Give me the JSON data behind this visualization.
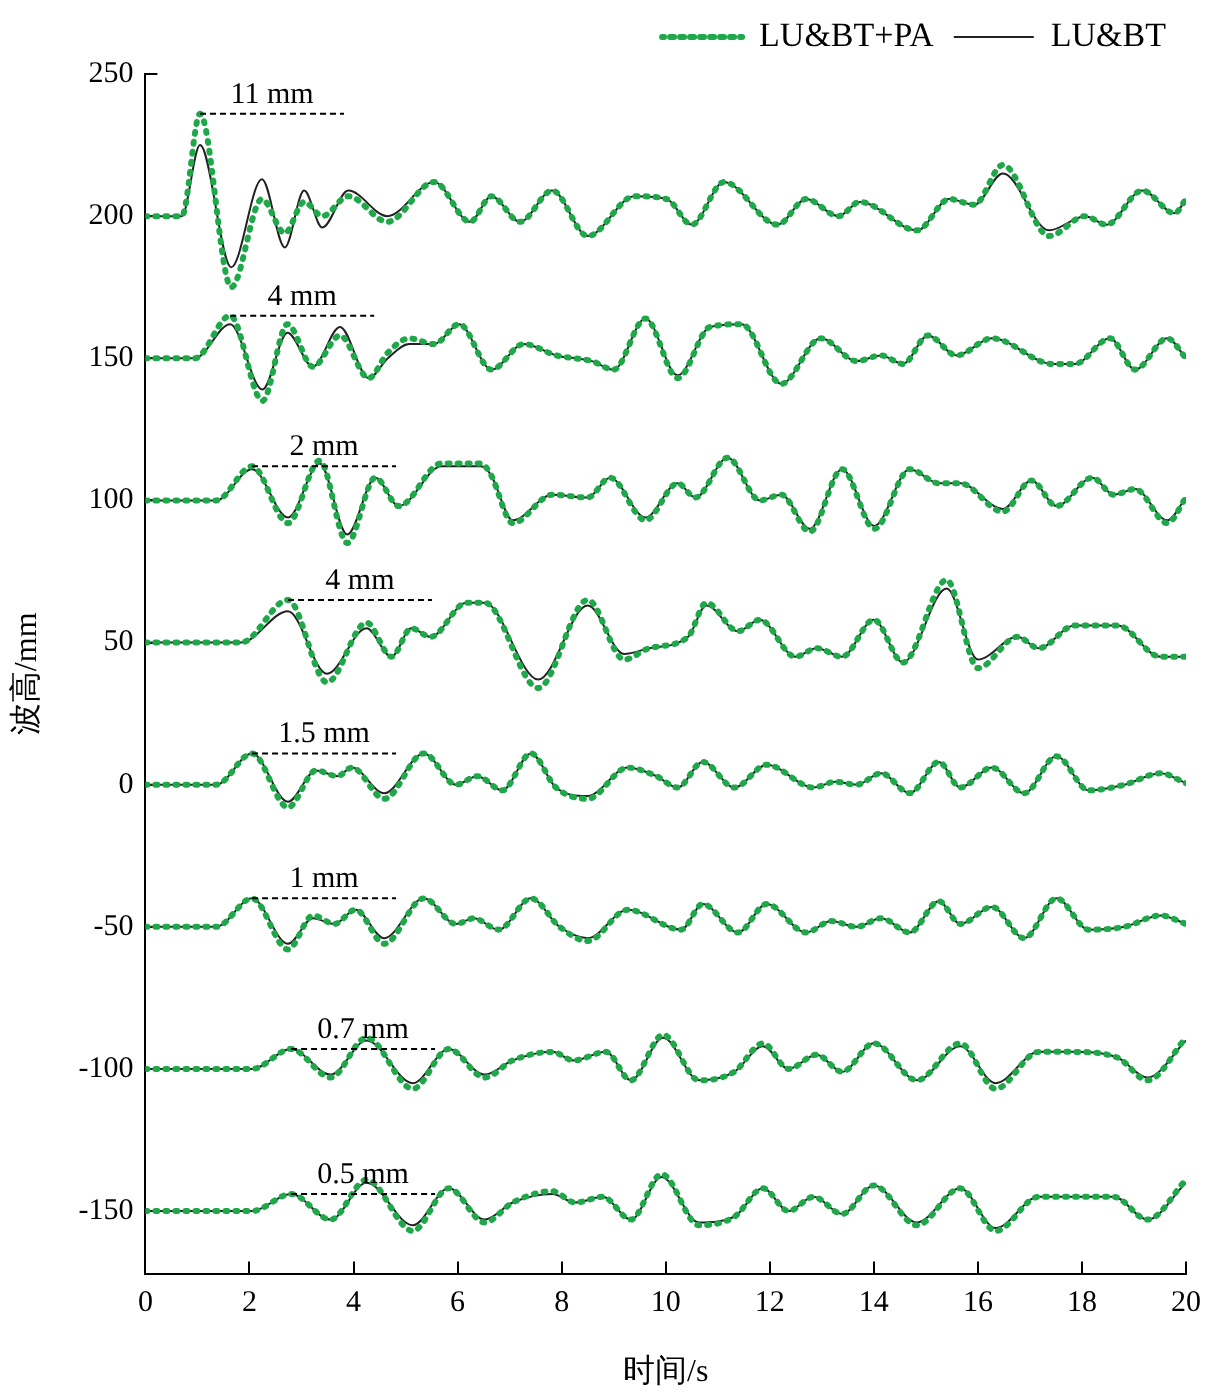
{
  "chart_data": {
    "type": "line",
    "xlabel": "时间/s",
    "ylabel": "波高/mm",
    "xlim": [
      0,
      20
    ],
    "xticks": [
      0,
      2,
      4,
      6,
      8,
      10,
      12,
      14,
      16,
      18,
      20
    ],
    "ylim": [
      -172,
      250
    ],
    "yticks": [
      -150,
      -100,
      -50,
      0,
      50,
      100,
      150,
      200,
      250
    ],
    "grid": false,
    "legend": "top right",
    "marker": "none",
    "series": [
      {
        "name": "LU&BT+PA",
        "color": "#1fa84a",
        "line_style": "dotted",
        "x": [
          0,
          0.7,
          1.05,
          1.65,
          2.24,
          2.68,
          3.05,
          3.4,
          3.9,
          4.65,
          5.55,
          6.24,
          6.65,
          7.2,
          7.82,
          8.5,
          9.4,
          10.02,
          10.5,
          11.12,
          12.15,
          12.7,
          13.32,
          13.73,
          14.83,
          15.45,
          15.93,
          16.48,
          17.37,
          18.06,
          18.47,
          19.16,
          19.78,
          20
        ],
        "values": [
          200,
          200,
          236,
          175,
          206,
          194,
          205,
          200,
          207,
          198,
          212,
          198,
          207,
          198,
          209,
          193,
          207,
          206,
          197,
          212,
          197,
          206,
          200,
          205,
          195,
          206,
          204,
          218,
          193,
          200,
          197,
          209,
          201,
          206
        ]
      },
      {
        "name": "LU&BT",
        "color": "#222222",
        "line_style": "solid",
        "x": [
          0,
          0.7,
          1.05,
          1.65,
          2.24,
          2.68,
          3.05,
          3.4,
          3.9,
          4.65,
          5.55,
          6.24,
          6.65,
          7.2,
          7.82,
          8.5,
          9.4,
          10.02,
          10.5,
          11.12,
          12.15,
          12.7,
          13.32,
          13.73,
          14.83,
          15.45,
          15.93,
          16.48,
          17.37,
          18.06,
          18.47,
          19.16,
          19.78,
          20
        ],
        "values": [
          200,
          200,
          225,
          182,
          213,
          189,
          209,
          196,
          209,
          200,
          212,
          198,
          207,
          198,
          209,
          193,
          207,
          206,
          197,
          212,
          197,
          206,
          200,
          205,
          195,
          206,
          204,
          215,
          195,
          200,
          197,
          209,
          201,
          206
        ]
      },
      {
        "color": "#1fa84a",
        "line_style": "dotted",
        "x": [
          0,
          0.95,
          1.63,
          2.25,
          2.73,
          3.22,
          3.74,
          4.29,
          4.66,
          5.07,
          5.55,
          6.03,
          6.65,
          7.27,
          7.9,
          8.58,
          9.0,
          9.61,
          10.23,
          10.85,
          11.46,
          12.22,
          12.98,
          13.67,
          14.14,
          14.56,
          15.04,
          15.59,
          16.27,
          17.44,
          17.86,
          18.54,
          19.02,
          19.64,
          20
        ],
        "values": [
          150,
          150,
          165,
          135,
          162,
          147,
          158,
          143,
          152,
          157,
          155,
          162,
          146,
          155,
          151,
          149,
          146,
          164,
          143,
          161,
          162,
          141,
          157,
          149,
          151,
          148,
          158,
          151,
          157,
          148,
          148,
          157,
          146,
          157,
          150
        ]
      },
      {
        "color": "#222222",
        "line_style": "solid",
        "x": [
          0,
          0.95,
          1.63,
          2.25,
          2.73,
          3.22,
          3.74,
          4.29,
          4.66,
          5.07,
          5.55,
          6.03,
          6.65,
          7.27,
          7.9,
          8.58,
          9.0,
          9.61,
          10.23,
          10.85,
          11.46,
          12.22,
          12.98,
          13.67,
          14.14,
          14.56,
          15.04,
          15.59,
          16.27,
          17.44,
          17.86,
          18.54,
          19.02,
          19.64,
          20
        ],
        "values": [
          150,
          150,
          162,
          139,
          159,
          147,
          161,
          143,
          150,
          155,
          155,
          162,
          146,
          155,
          151,
          149,
          146,
          164,
          144,
          161,
          162,
          141,
          157,
          149,
          151,
          148,
          158,
          151,
          157,
          148,
          148,
          157,
          146,
          157,
          150
        ]
      },
      {
        "color": "#1fa84a",
        "line_style": "dotted",
        "x": [
          0,
          1.36,
          2.05,
          2.74,
          3.35,
          3.88,
          4.42,
          4.87,
          5.69,
          6.45,
          6.64,
          7.06,
          7.82,
          8.5,
          8.93,
          9.61,
          10.23,
          10.57,
          11.19,
          11.81,
          12.22,
          12.77,
          13.39,
          14.01,
          14.69,
          15.25,
          15.66,
          16.48,
          17.03,
          17.51,
          18.2,
          18.61,
          19.02,
          19.64,
          20
        ],
        "values": [
          100,
          100,
          112,
          92,
          114,
          85,
          108,
          98,
          113,
          113,
          109,
          92,
          102,
          101,
          108,
          93,
          106,
          101,
          115,
          100,
          102,
          89,
          111,
          90,
          111,
          106,
          106,
          96,
          107,
          98,
          108,
          102,
          104,
          92,
          101
        ]
      },
      {
        "color": "#222222",
        "line_style": "solid",
        "x": [
          0,
          1.36,
          2.05,
          2.74,
          3.35,
          3.88,
          4.42,
          4.87,
          5.69,
          6.45,
          6.64,
          7.06,
          7.82,
          8.5,
          8.93,
          9.61,
          10.23,
          10.57,
          11.19,
          11.81,
          12.22,
          12.77,
          13.39,
          14.01,
          14.69,
          15.25,
          15.66,
          16.48,
          17.03,
          17.51,
          18.2,
          18.61,
          19.02,
          19.64,
          20
        ],
        "values": [
          100,
          100,
          111,
          94,
          113,
          88,
          108,
          98,
          112,
          112,
          109,
          93,
          102,
          101,
          108,
          94,
          106,
          101,
          115,
          100,
          102,
          90,
          111,
          91,
          111,
          106,
          106,
          97,
          107,
          98,
          108,
          102,
          104,
          93,
          101
        ]
      },
      {
        "color": "#1fa84a",
        "line_style": "dotted",
        "x": [
          0,
          1.84,
          2.74,
          3.49,
          4.25,
          4.73,
          5.11,
          5.48,
          6.17,
          6.52,
          7.55,
          8.5,
          9.2,
          9.68,
          10.43,
          10.78,
          11.39,
          11.81,
          12.49,
          12.9,
          13.39,
          14.0,
          14.56,
          15.4,
          16.0,
          16.76,
          17.17,
          17.86,
          18.68,
          19.51,
          20
        ],
        "values": [
          50,
          50,
          65,
          36,
          57,
          45,
          55,
          52,
          64,
          64,
          34,
          65,
          44,
          48,
          52,
          64,
          54,
          58,
          45,
          48,
          45,
          58,
          43,
          72,
          41,
          52,
          48,
          56,
          56,
          45,
          45
        ]
      },
      {
        "color": "#222222",
        "line_style": "solid",
        "x": [
          0,
          1.84,
          2.74,
          3.49,
          4.25,
          4.73,
          5.11,
          5.48,
          6.17,
          6.52,
          7.55,
          8.5,
          9.2,
          9.68,
          10.43,
          10.78,
          11.39,
          11.81,
          12.49,
          12.9,
          13.39,
          14.0,
          14.56,
          15.4,
          16.0,
          16.76,
          17.17,
          17.86,
          18.68,
          19.51,
          20
        ],
        "values": [
          50,
          50,
          61,
          39,
          55,
          45,
          55,
          52,
          64,
          64,
          37,
          63,
          46,
          48,
          52,
          63,
          54,
          58,
          45,
          48,
          45,
          58,
          43,
          69,
          44,
          52,
          48,
          56,
          56,
          45,
          45
        ]
      },
      {
        "color": "#1fa84a",
        "line_style": "dotted",
        "x": [
          0,
          1.36,
          2.05,
          2.74,
          3.28,
          3.69,
          3.97,
          4.59,
          5.35,
          5.97,
          6.38,
          6.86,
          7.41,
          7.89,
          8.5,
          9.27,
          9.82,
          10.23,
          10.71,
          11.32,
          11.94,
          12.84,
          13.26,
          13.67,
          14.14,
          14.69,
          15.25,
          15.66,
          16.27,
          16.89,
          17.51,
          18.13,
          18.82,
          19.51,
          20
        ],
        "values": [
          0,
          0,
          11,
          -8,
          5,
          3,
          6,
          -5,
          11,
          0,
          3,
          -2,
          11,
          -1,
          -5,
          6,
          3,
          -1,
          8,
          -1,
          7,
          -1,
          1,
          0,
          4,
          -3,
          8,
          -1,
          6,
          -3,
          10,
          -2,
          0,
          4,
          0.5
        ]
      },
      {
        "color": "#222222",
        "line_style": "solid",
        "x": [
          0,
          1.36,
          2.05,
          2.74,
          3.28,
          3.69,
          3.97,
          4.59,
          5.35,
          5.97,
          6.38,
          6.86,
          7.41,
          7.89,
          8.5,
          9.27,
          9.82,
          10.23,
          10.71,
          11.32,
          11.94,
          12.84,
          13.26,
          13.67,
          14.14,
          14.69,
          15.25,
          15.66,
          16.27,
          16.89,
          17.51,
          18.13,
          18.82,
          19.51,
          20
        ],
        "values": [
          0,
          0,
          11,
          -6,
          5,
          3,
          6,
          -3,
          11,
          0,
          3,
          -2,
          11,
          -1,
          -4,
          6,
          3,
          -1,
          8,
          -1,
          7,
          -1,
          1,
          0,
          4,
          -3,
          8,
          -1,
          6,
          -3,
          10,
          -2,
          0,
          4,
          0.5
        ]
      },
      {
        "color": "#1fa84a",
        "line_style": "dotted",
        "x": [
          0,
          1.36,
          2.05,
          2.74,
          3.22,
          3.63,
          4.04,
          4.59,
          5.35,
          5.97,
          6.31,
          6.79,
          7.41,
          7.96,
          8.5,
          9.27,
          10.3,
          10.71,
          11.39,
          11.94,
          12.7,
          13.18,
          13.67,
          14.14,
          14.69,
          15.25,
          15.66,
          16.27,
          16.89,
          17.51,
          18.13,
          18.82,
          19.51,
          20
        ],
        "values": [
          -50,
          -50,
          -40,
          -58,
          -46,
          -49,
          -44,
          -56,
          -40,
          -49,
          -47,
          -51,
          -40,
          -50,
          -55,
          -44,
          -51,
          -42,
          -52,
          -42,
          -52,
          -48,
          -50,
          -47,
          -52,
          -41,
          -49,
          -43,
          -54,
          -40,
          -51,
          -50,
          -46,
          -49
        ]
      },
      {
        "color": "#222222",
        "line_style": "solid",
        "x": [
          0,
          1.36,
          2.05,
          2.74,
          3.22,
          3.63,
          4.04,
          4.59,
          5.35,
          5.97,
          6.31,
          6.79,
          7.41,
          7.96,
          8.5,
          9.27,
          10.3,
          10.71,
          11.39,
          11.94,
          12.7,
          13.18,
          13.67,
          14.14,
          14.69,
          15.25,
          15.66,
          16.27,
          16.89,
          17.51,
          18.13,
          18.82,
          19.51,
          20
        ],
        "values": [
          -50,
          -50,
          -40,
          -56,
          -47,
          -49,
          -44,
          -54,
          -40,
          -49,
          -47,
          -51,
          -40,
          -50,
          -54,
          -44,
          -51,
          -42,
          -52,
          -42,
          -52,
          -48,
          -50,
          -47,
          -52,
          -41,
          -49,
          -43,
          -54,
          -40,
          -51,
          -50,
          -46,
          -49
        ]
      },
      {
        "color": "#1fa84a",
        "line_style": "dotted",
        "x": [
          0,
          2.05,
          2.8,
          3.56,
          4.25,
          5.14,
          5.83,
          6.52,
          7.06,
          7.82,
          8.23,
          8.85,
          9.33,
          9.95,
          10.64,
          11.32,
          11.87,
          12.36,
          12.9,
          13.39,
          14.0,
          14.83,
          15.66,
          16.34,
          17.17,
          17.79,
          18.68,
          19.26,
          20
        ],
        "values": [
          -100,
          -100,
          -93,
          -103,
          -89,
          -107,
          -93,
          -103,
          -97,
          -94,
          -97,
          -94,
          -104,
          -88,
          -104,
          -101,
          -91,
          -100,
          -95,
          -101,
          -91,
          -104,
          -91,
          -107,
          -94,
          -94,
          -96,
          -104,
          -89
        ]
      },
      {
        "color": "#222222",
        "line_style": "solid",
        "x": [
          0,
          2.05,
          2.8,
          3.56,
          4.25,
          5.14,
          5.83,
          6.52,
          7.06,
          7.82,
          8.23,
          8.85,
          9.33,
          9.95,
          10.64,
          11.32,
          11.87,
          12.36,
          12.9,
          13.39,
          14.0,
          14.83,
          15.66,
          16.34,
          17.17,
          17.79,
          18.68,
          19.26,
          20
        ],
        "values": [
          -100,
          -100,
          -93,
          -102,
          -90,
          -105,
          -93,
          -102,
          -97,
          -94,
          -97,
          -94,
          -104,
          -89,
          -104,
          -101,
          -92,
          -100,
          -95,
          -101,
          -91,
          -104,
          -92,
          -105,
          -94,
          -94,
          -96,
          -103,
          -90
        ]
      },
      {
        "color": "#1fa84a",
        "line_style": "dotted",
        "x": [
          0,
          2.05,
          2.8,
          3.56,
          4.25,
          5.14,
          5.83,
          6.52,
          7.06,
          7.82,
          8.26,
          8.79,
          9.33,
          9.92,
          10.64,
          11.32,
          11.87,
          12.36,
          12.84,
          13.39,
          14.0,
          14.83,
          15.66,
          16.34,
          17.17,
          17.79,
          18.61,
          19.26,
          20
        ],
        "values": [
          -150,
          -150,
          -144,
          -153,
          -139,
          -157,
          -142,
          -154,
          -147,
          -143,
          -147,
          -145,
          -153,
          -137,
          -155,
          -152,
          -142,
          -150,
          -145,
          -151,
          -141,
          -155,
          -142,
          -157,
          -145,
          -145,
          -145,
          -153,
          -139
        ]
      },
      {
        "color": "#222222",
        "line_style": "solid",
        "x": [
          0,
          2.05,
          2.8,
          3.56,
          4.25,
          5.14,
          5.83,
          6.52,
          7.06,
          7.82,
          8.26,
          8.79,
          9.33,
          9.92,
          10.64,
          11.32,
          11.87,
          12.36,
          12.84,
          13.39,
          14.0,
          14.83,
          15.66,
          16.34,
          17.17,
          17.79,
          18.61,
          19.26,
          20
        ],
        "values": [
          -150,
          -150,
          -144,
          -153,
          -140,
          -155,
          -142,
          -153,
          -147,
          -144,
          -147,
          -145,
          -153,
          -138,
          -154,
          -152,
          -142,
          -150,
          -145,
          -151,
          -141,
          -154,
          -142,
          -156,
          -145,
          -145,
          -145,
          -153,
          -140
        ]
      }
    ],
    "annotations": [
      {
        "text": "11 mm",
        "x": 1.05,
        "y": 236
      },
      {
        "text": "4 mm",
        "x": 1.63,
        "y": 165
      },
      {
        "text": "2 mm",
        "x": 2.05,
        "y": 112
      },
      {
        "text": "4 mm",
        "x": 2.74,
        "y": 65
      },
      {
        "text": "1.5 mm",
        "x": 2.05,
        "y": 11
      },
      {
        "text": "1 mm",
        "x": 2.05,
        "y": -40
      },
      {
        "text": "0.7 mm",
        "x": 2.8,
        "y": -93
      },
      {
        "text": "0.5 mm",
        "x": 2.8,
        "y": -144
      }
    ]
  }
}
